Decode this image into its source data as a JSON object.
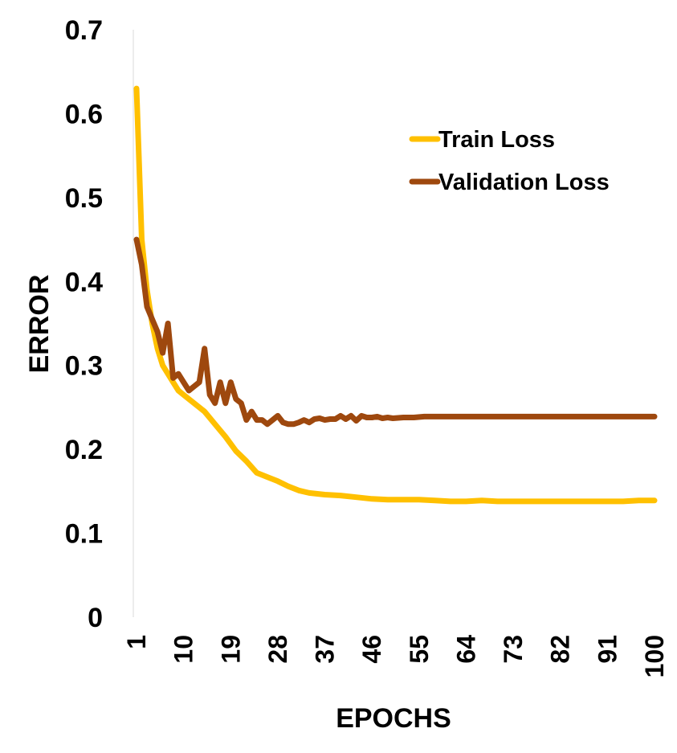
{
  "chart_data": {
    "type": "line",
    "title": "",
    "xlabel": "EPOCHS",
    "ylabel": "ERROR",
    "ylim": [
      0,
      0.7
    ],
    "xlim": [
      1,
      100
    ],
    "grid": false,
    "legend_position": "top-right",
    "y_ticks": [
      "0",
      "0.1",
      "0.2",
      "0.3",
      "0.4",
      "0.5",
      "0.6",
      "0.7"
    ],
    "x_ticks": [
      "1",
      "10",
      "19",
      "28",
      "37",
      "46",
      "55",
      "64",
      "73",
      "82",
      "91",
      "100"
    ],
    "series": [
      {
        "name": "Train Loss",
        "color": "#FFC000",
        "x": [
          1,
          2,
          3,
          4,
          5,
          6,
          7,
          8,
          9,
          10,
          12,
          14,
          16,
          18,
          20,
          22,
          24,
          26,
          28,
          30,
          32,
          34,
          37,
          40,
          43,
          46,
          49,
          52,
          55,
          58,
          61,
          64,
          67,
          70,
          73,
          76,
          79,
          82,
          85,
          88,
          91,
          94,
          97,
          100
        ],
        "values": [
          0.63,
          0.45,
          0.39,
          0.35,
          0.32,
          0.3,
          0.29,
          0.28,
          0.27,
          0.265,
          0.255,
          0.245,
          0.23,
          0.215,
          0.198,
          0.186,
          0.172,
          0.167,
          0.162,
          0.156,
          0.151,
          0.148,
          0.146,
          0.145,
          0.143,
          0.141,
          0.14,
          0.14,
          0.14,
          0.139,
          0.138,
          0.138,
          0.139,
          0.138,
          0.138,
          0.138,
          0.138,
          0.138,
          0.138,
          0.138,
          0.138,
          0.138,
          0.139,
          0.139
        ]
      },
      {
        "name": "Validation Loss",
        "color": "#9E480E",
        "x": [
          1,
          2,
          3,
          4,
          5,
          6,
          7,
          8,
          9,
          10,
          11,
          12,
          13,
          14,
          15,
          16,
          17,
          18,
          19,
          20,
          21,
          22,
          23,
          24,
          25,
          26,
          27,
          28,
          29,
          30,
          31,
          32,
          33,
          34,
          35,
          36,
          37,
          38,
          39,
          40,
          41,
          42,
          43,
          44,
          45,
          46,
          47,
          48,
          49,
          50,
          52,
          54,
          56,
          60,
          70,
          80,
          90,
          100
        ],
        "values": [
          0.45,
          0.42,
          0.37,
          0.355,
          0.34,
          0.315,
          0.35,
          0.285,
          0.29,
          0.28,
          0.27,
          0.275,
          0.28,
          0.32,
          0.265,
          0.255,
          0.28,
          0.255,
          0.28,
          0.26,
          0.255,
          0.235,
          0.245,
          0.235,
          0.235,
          0.23,
          0.235,
          0.24,
          0.232,
          0.23,
          0.23,
          0.232,
          0.235,
          0.232,
          0.236,
          0.237,
          0.235,
          0.236,
          0.236,
          0.24,
          0.236,
          0.24,
          0.234,
          0.24,
          0.238,
          0.238,
          0.239,
          0.237,
          0.238,
          0.237,
          0.238,
          0.238,
          0.239,
          0.239,
          0.239,
          0.239,
          0.239,
          0.239
        ]
      }
    ]
  }
}
